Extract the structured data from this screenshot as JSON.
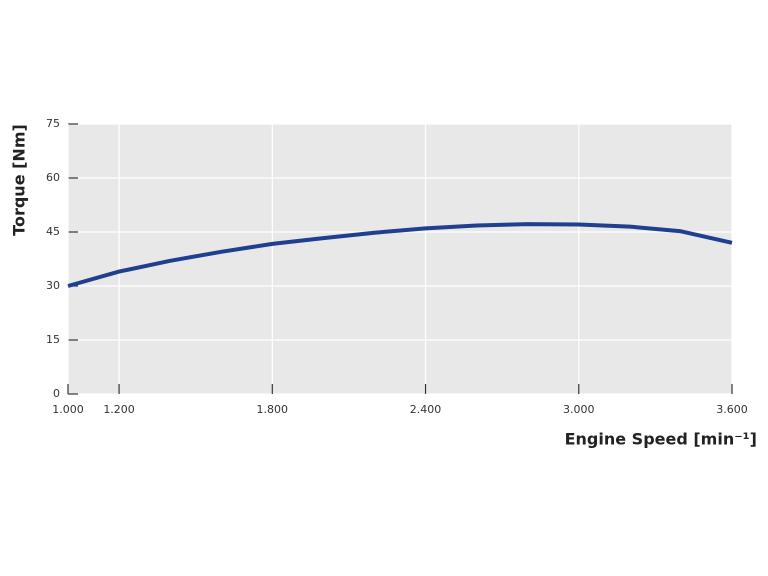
{
  "chart_data": {
    "type": "line",
    "ylabel": "Torque [Nm]",
    "xlabel": "Engine Speed [min⁻¹]",
    "x": [
      1000,
      1200,
      1400,
      1600,
      1800,
      2000,
      2200,
      2400,
      2600,
      2800,
      3000,
      3200,
      3400,
      3600
    ],
    "series": [
      {
        "name": "Torque",
        "color": "#1f3f8f",
        "values": [
          30,
          34,
          37,
          39.5,
          41.7,
          43.3,
          44.8,
          46,
          46.8,
          47.2,
          47.1,
          46.5,
          45.2,
          42
        ]
      }
    ],
    "xlim": [
      1000,
      3600
    ],
    "xticks": [
      {
        "value": 1000,
        "label": "1.000"
      },
      {
        "value": 1200,
        "label": "1.200"
      },
      {
        "value": 1800,
        "label": "1.800"
      },
      {
        "value": 2400,
        "label": "2.400"
      },
      {
        "value": 3000,
        "label": "3.000"
      },
      {
        "value": 3600,
        "label": "3.600"
      }
    ],
    "ylim": [
      0,
      75
    ],
    "yticks": [
      0,
      15,
      30,
      45,
      60,
      75
    ],
    "grid": true
  }
}
